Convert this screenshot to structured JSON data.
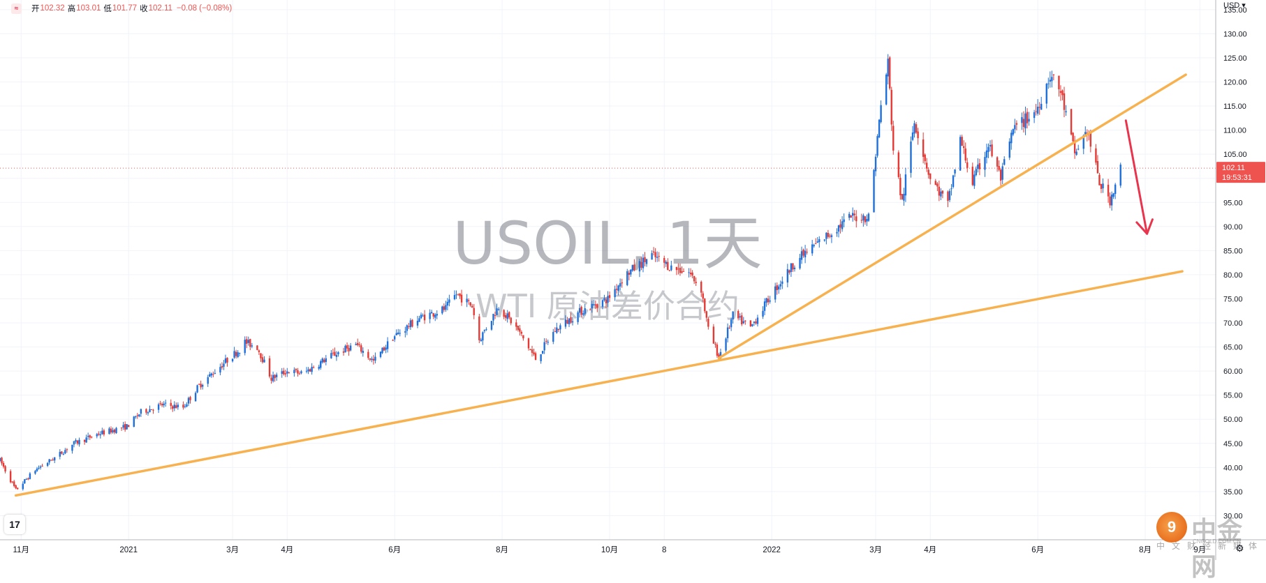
{
  "toolbar": {
    "logo_glyph": "≈",
    "open_label": "开",
    "open_value": "102.32",
    "high_label": "高",
    "high_value": "103.01",
    "low_label": "低",
    "low_value": "101.77",
    "close_label": "收",
    "close_value": "102.11",
    "change": "−0.08 (−0.08%)"
  },
  "currency": "USD ▾",
  "watermark": {
    "symbol": "USOIL, 1天",
    "description": "WTI 原油差价合约"
  },
  "brand": {
    "coin_glyph": "9",
    "name": "中金网",
    "url": "CNGOLD.COM.CN",
    "tagline": "中文财经新媒体"
  },
  "tv_logo": "17",
  "settings_icon": "gear-icon",
  "chart_data": {
    "type": "candlestick",
    "symbol": "USOIL",
    "interval": "1天",
    "x_range": [
      "2020-10-20",
      "2022-09-10"
    ],
    "y_range": [
      25,
      137
    ],
    "price_ticks": [
      30,
      35,
      40,
      45,
      50,
      55,
      60,
      65,
      70,
      75,
      80,
      85,
      90,
      95,
      100,
      105,
      110,
      115,
      120,
      125,
      130,
      135
    ],
    "x_ticks": [
      {
        "date": "2020-11-01",
        "label": "11月"
      },
      {
        "date": "2021-01-01",
        "label": "2021"
      },
      {
        "date": "2021-03-01",
        "label": "3月"
      },
      {
        "date": "2021-04-01",
        "label": "4月"
      },
      {
        "date": "2021-06-01",
        "label": "6月"
      },
      {
        "date": "2021-08-01",
        "label": "8月"
      },
      {
        "date": "2021-10-01",
        "label": "10月"
      },
      {
        "date": "2021-11-01",
        "label": "8"
      },
      {
        "date": "2022-01-01",
        "label": "2022"
      },
      {
        "date": "2022-03-01",
        "label": "3月"
      },
      {
        "date": "2022-04-01",
        "label": "4月"
      },
      {
        "date": "2022-06-01",
        "label": "6月"
      },
      {
        "date": "2022-08-01",
        "label": "8月"
      },
      {
        "date": "2022-09-01",
        "label": "9月"
      }
    ],
    "current_price": {
      "value": 102.11,
      "label": "102.11",
      "countdown": "19:53:31"
    },
    "price_path": [
      [
        "2020-10-20",
        41.5
      ],
      [
        "2020-10-29",
        35.3
      ],
      [
        "2020-11-09",
        39.5
      ],
      [
        "2020-11-20",
        42.0
      ],
      [
        "2020-12-01",
        45.0
      ],
      [
        "2020-12-15",
        47.0
      ],
      [
        "2020-12-31",
        48.5
      ],
      [
        "2021-01-08",
        51.5
      ],
      [
        "2021-01-20",
        53.0
      ],
      [
        "2021-02-01",
        52.5
      ],
      [
        "2021-02-10",
        57.0
      ],
      [
        "2021-02-25",
        62.0
      ],
      [
        "2021-03-05",
        64.5
      ],
      [
        "2021-03-08",
        66.0
      ],
      [
        "2021-03-15",
        65.0
      ],
      [
        "2021-03-23",
        58.5
      ],
      [
        "2021-04-01",
        60.0
      ],
      [
        "2021-04-10",
        59.5
      ],
      [
        "2021-04-25",
        63.0
      ],
      [
        "2021-05-10",
        65.5
      ],
      [
        "2021-05-20",
        62.0
      ],
      [
        "2021-05-31",
        67.0
      ],
      [
        "2021-06-15",
        71.0
      ],
      [
        "2021-06-30",
        73.0
      ],
      [
        "2021-07-06",
        76.0
      ],
      [
        "2021-07-15",
        73.5
      ],
      [
        "2021-07-19",
        66.5
      ],
      [
        "2021-07-30",
        73.5
      ],
      [
        "2021-08-10",
        68.5
      ],
      [
        "2021-08-20",
        62.5
      ],
      [
        "2021-08-31",
        68.5
      ],
      [
        "2021-09-15",
        72.5
      ],
      [
        "2021-09-30",
        75.0
      ],
      [
        "2021-10-10",
        80.0
      ],
      [
        "2021-10-25",
        84.0
      ],
      [
        "2021-11-05",
        81.5
      ],
      [
        "2021-11-15",
        80.5
      ],
      [
        "2021-11-22",
        77.0
      ],
      [
        "2021-11-26",
        68.5
      ],
      [
        "2021-12-02",
        63.0
      ],
      [
        "2021-12-10",
        71.5
      ],
      [
        "2021-12-20",
        69.0
      ],
      [
        "2022-01-01",
        76.0
      ],
      [
        "2022-01-15",
        83.0
      ],
      [
        "2022-02-01",
        88.0
      ],
      [
        "2022-02-15",
        92.0
      ],
      [
        "2022-02-25",
        92.0
      ],
      [
        "2022-03-04",
        115.0
      ],
      [
        "2022-03-08",
        124.0
      ],
      [
        "2022-03-11",
        106.0
      ],
      [
        "2022-03-16",
        95.0
      ],
      [
        "2022-03-23",
        112.0
      ],
      [
        "2022-04-01",
        100.0
      ],
      [
        "2022-04-11",
        94.5
      ],
      [
        "2022-04-18",
        108.0
      ],
      [
        "2022-04-25",
        99.0
      ],
      [
        "2022-05-04",
        107.0
      ],
      [
        "2022-05-11",
        100.0
      ],
      [
        "2022-05-18",
        110.0
      ],
      [
        "2022-05-31",
        114.0
      ],
      [
        "2022-06-08",
        121.5
      ],
      [
        "2022-06-14",
        118.0
      ],
      [
        "2022-06-22",
        105.0
      ],
      [
        "2022-06-29",
        110.0
      ],
      [
        "2022-07-06",
        99.0
      ],
      [
        "2022-07-12",
        95.5
      ],
      [
        "2022-07-18",
        102.1
      ]
    ],
    "annotations": {
      "trendlines": [
        {
          "from": [
            "2020-10-29",
            34.2
          ],
          "to": [
            "2022-08-22",
            80.7
          ],
          "color": "#f7b14e"
        },
        {
          "from": [
            "2021-12-02",
            62.7
          ],
          "to": [
            "2022-08-24",
            121.5
          ],
          "color": "#f7b14e"
        }
      ],
      "forecast_arrow": {
        "from": [
          "2022-07-21",
          112
        ],
        "to": [
          "2022-08-02",
          88.5
        ],
        "color": "#e8344c"
      }
    }
  }
}
